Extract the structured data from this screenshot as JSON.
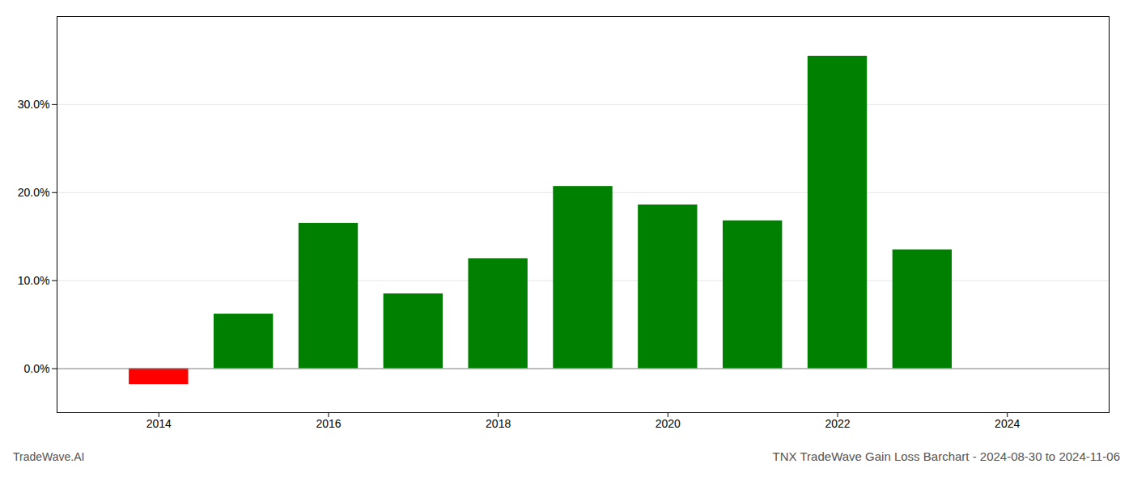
{
  "chart_data": {
    "type": "bar",
    "title": "TNX TradeWave Gain Loss Barchart - 2024-08-30 to 2024-11-06",
    "annotations": [
      "TradeWave.AI"
    ],
    "x": [
      2014,
      2015,
      2016,
      2017,
      2018,
      2019,
      2020,
      2021,
      2022,
      2023
    ],
    "values": [
      -0.018,
      0.062,
      0.165,
      0.085,
      0.125,
      0.207,
      0.186,
      0.168,
      0.355,
      0.135
    ],
    "colors": [
      "#ff0000",
      "#008000",
      "#008000",
      "#008000",
      "#008000",
      "#008000",
      "#008000",
      "#008000",
      "#008000",
      "#008000"
    ],
    "xlim": [
      2012.8,
      2025.2
    ],
    "xticks": [
      2014,
      2016,
      2018,
      2020,
      2022,
      2024
    ],
    "ylim": [
      -0.05,
      0.4
    ],
    "yticks": [
      {
        "value": 0.0,
        "label": "0.0%"
      },
      {
        "value": 0.1,
        "label": "10.0%"
      },
      {
        "value": 0.2,
        "label": "20.0%"
      },
      {
        "value": 0.3,
        "label": "30.0%"
      }
    ],
    "grid": true
  }
}
